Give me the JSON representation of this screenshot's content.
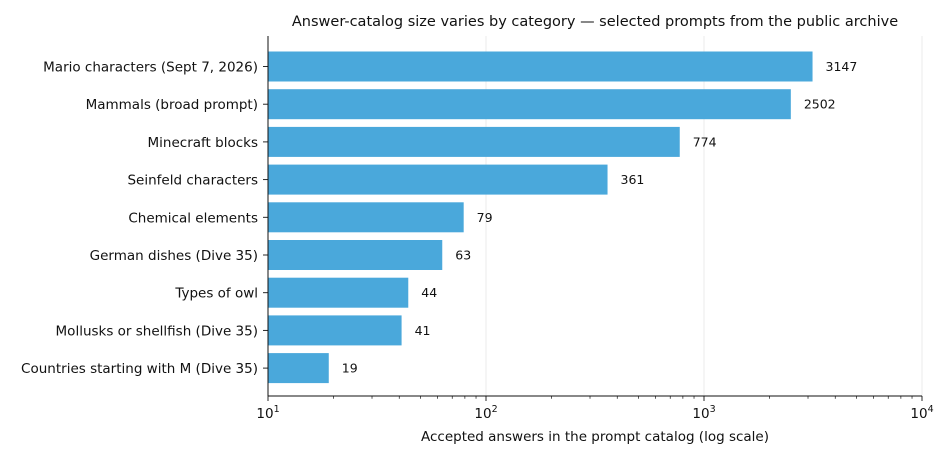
{
  "chart_data": {
    "type": "bar",
    "orientation": "horizontal",
    "title": "Answer-catalog size varies by category — selected prompts from the public archive",
    "xlabel": "Accepted answers in the prompt catalog (log scale)",
    "ylabel": "",
    "x_scale": "log",
    "xlim": [
      10,
      10000
    ],
    "x_ticks": [
      {
        "value": 10,
        "base": "10",
        "exp": "1"
      },
      {
        "value": 100,
        "base": "10",
        "exp": "2"
      },
      {
        "value": 1000,
        "base": "10",
        "exp": "3"
      },
      {
        "value": 10000,
        "base": "10",
        "exp": "4"
      }
    ],
    "grid": "vertical gridlines at major ticks",
    "categories": [
      "Mario characters (Sept 7, 2026)",
      "Mammals (broad prompt)",
      "Minecraft blocks",
      "Seinfeld characters",
      "Chemical elements",
      "German dishes (Dive 35)",
      "Types of owl",
      "Mollusks or shellfish (Dive 35)",
      "Countries starting with M (Dive 35)"
    ],
    "values": [
      3147,
      2502,
      774,
      361,
      79,
      63,
      44,
      41,
      19
    ],
    "data_labels": [
      "3147",
      "2502",
      "774",
      "361",
      "79",
      "63",
      "44",
      "41",
      "19"
    ],
    "bar_color": "#4aa8db"
  }
}
